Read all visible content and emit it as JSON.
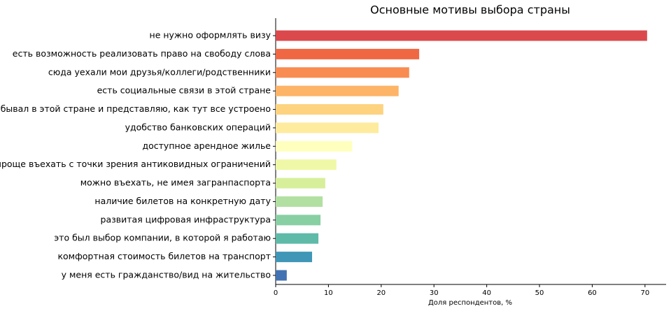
{
  "chart_data": {
    "type": "barh",
    "title": "Основные мотивы выбора страны",
    "xlabel": "Доля респондентов, %",
    "categories": [
      "не нужно оформлять визу",
      "есть возможность реализовать право на свободу слова",
      "сюда уехали мои друзья/коллеги/родственники",
      "есть социальные связи в этой стране",
      "бывал в этой стране и представляю, как тут все устроено",
      "удобство банковских операций",
      "доступное арендное жилье",
      "проще въехать с точки зрения антиковидных ограничений",
      "можно въехать, не имея загранпаспорта",
      "наличие билетов на конкретную дату",
      "развитая цифровая инфраструктура",
      "это был выбор компании, в которой я работаю",
      "комфортная стоимость билетов на транспорт",
      "у меня есть гражданство/вид на жительство"
    ],
    "values": [
      70.4,
      27.2,
      25.3,
      23.3,
      20.4,
      19.5,
      14.5,
      11.5,
      9.4,
      8.9,
      8.5,
      8.1,
      6.9,
      2.1
    ],
    "colors": [
      "#dc494c",
      "#f06744",
      "#f88c51",
      "#fdb466",
      "#fdd380",
      "#feeb9e",
      "#ffffbe",
      "#eff8a6",
      "#d7ef9b",
      "#b2e0a2",
      "#88cfa4",
      "#5fbaa8",
      "#3f96b7",
      "#4272b2"
    ],
    "xlim": [
      0,
      74
    ],
    "xticks": [
      0,
      10,
      20,
      30,
      40,
      50,
      60,
      70
    ]
  }
}
